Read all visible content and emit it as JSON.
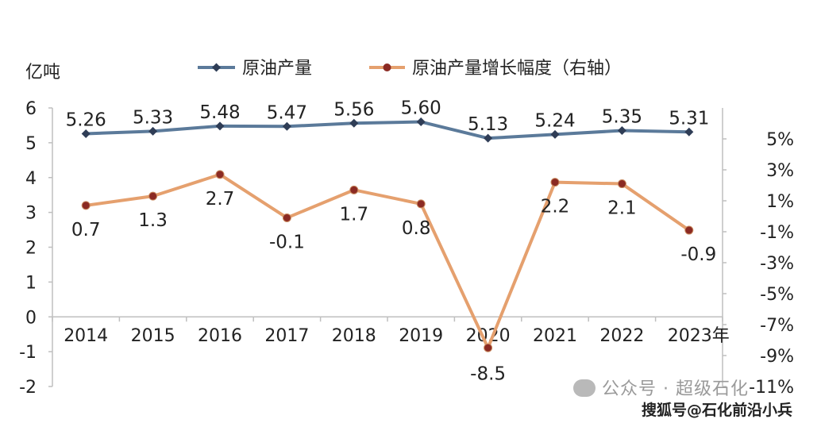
{
  "chart_data": {
    "type": "line",
    "categories": [
      "2014",
      "2015",
      "2016",
      "2017",
      "2018",
      "2019",
      "2020",
      "2021",
      "2022",
      "2023"
    ],
    "x_unit_suffix": "年",
    "left_axis": {
      "unit": "亿吨",
      "ylim": [
        -2,
        6
      ],
      "ticks": [
        "-2",
        "-1",
        "0",
        "1",
        "2",
        "3",
        "4",
        "5",
        "6"
      ]
    },
    "right_axis": {
      "ylim": [
        -11,
        7
      ],
      "ticks": [
        "-11%",
        "-9%",
        "-7%",
        "-5%",
        "-3%",
        "-1%",
        "1%",
        "3%",
        "5%"
      ]
    },
    "grid": false,
    "legend_position": "top",
    "series": [
      {
        "name": "原油产量",
        "axis": "left",
        "color": "#5b7a9a",
        "marker_color": "#2f3d56",
        "values": [
          5.26,
          5.33,
          5.48,
          5.47,
          5.56,
          5.6,
          5.13,
          5.24,
          5.35,
          5.31
        ],
        "labels": [
          "5.26",
          "5.33",
          "5.48",
          "5.47",
          "5.56",
          "5.60",
          "5.13",
          "5.24",
          "5.35",
          "5.31"
        ]
      },
      {
        "name": "原油产量增长幅度（右轴）",
        "axis": "right",
        "color": "#e5a06e",
        "marker_color": "#8b2a23",
        "values": [
          0.7,
          1.3,
          2.7,
          -0.1,
          1.7,
          0.8,
          -8.5,
          2.2,
          2.1,
          -0.9
        ],
        "labels": [
          "0.7",
          "1.3",
          "2.7",
          "-0.1",
          "1.7",
          "0.8",
          "-8.5",
          "2.2",
          "2.1",
          "-0.9"
        ]
      }
    ]
  },
  "watermark": {
    "line1": "公众号 · 超级石化",
    "line2": "搜狐号@石化前沿小兵"
  }
}
